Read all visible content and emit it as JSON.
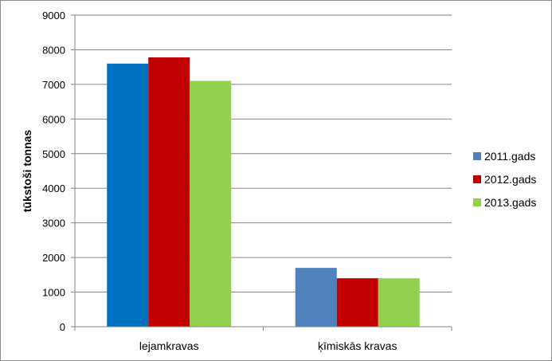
{
  "chart_data": {
    "type": "bar",
    "title": "",
    "xlabel": "",
    "ylabel": "tūkstoši tonnas",
    "ylim": [
      0,
      9000
    ],
    "yticks": [
      0,
      1000,
      2000,
      3000,
      4000,
      5000,
      6000,
      7000,
      8000,
      9000
    ],
    "grid": true,
    "legend_position": "right",
    "categories": [
      "lejamkravas",
      "ķīmiskās kravas"
    ],
    "series": [
      {
        "name": "2011.gads",
        "values": [
          7600,
          1700
        ],
        "color": "#4f81bd",
        "point_colors": [
          "#0070c0",
          "#4f81bd"
        ]
      },
      {
        "name": "2012.gads",
        "values": [
          7780,
          1400
        ],
        "color": "#c00000"
      },
      {
        "name": "2013.gads",
        "values": [
          7100,
          1400
        ],
        "color": "#92d050"
      }
    ]
  }
}
